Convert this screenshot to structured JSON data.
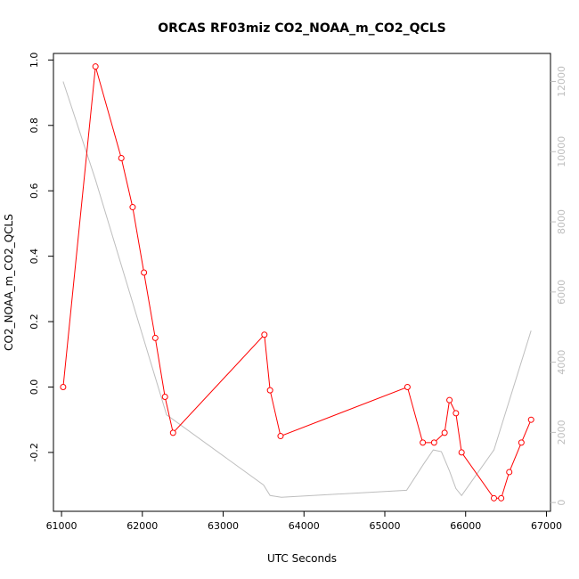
{
  "chart_data": {
    "type": "line",
    "title": "ORCAS RF03miz CO2_NOAA_m_CO2_QCLS",
    "xlabel": "UTC Seconds",
    "ylabel": "CO2_NOAA_m_CO2_QCLS",
    "xlim": [
      60900,
      67050
    ],
    "ylim": [
      -0.38,
      1.02
    ],
    "y2lim": [
      -250,
      12800
    ],
    "x_ticks": [
      61000,
      62000,
      63000,
      64000,
      65000,
      66000,
      67000
    ],
    "x_tick_labels": [
      "61000",
      "62000",
      "63000",
      "64000",
      "65000",
      "66000",
      "67000"
    ],
    "y_ticks": [
      -0.2,
      0.0,
      0.2,
      0.4,
      0.6,
      0.8,
      1.0
    ],
    "y_tick_labels": [
      "-0.2",
      "0.0",
      "0.2",
      "0.4",
      "0.6",
      "0.8",
      "1.0"
    ],
    "y2_ticks": [
      0,
      2000,
      4000,
      6000,
      8000,
      10000,
      12000
    ],
    "y2_tick_labels": [
      "0",
      "2000",
      "4000",
      "6000",
      "8000",
      "10000",
      "12000"
    ],
    "grid": false,
    "legend": "none",
    "series": [
      {
        "axis": "left",
        "color": "#ff0000",
        "marker": "open-circle",
        "x": [
          61020,
          61420,
          61740,
          61880,
          62020,
          62160,
          62280,
          62380,
          63510,
          63580,
          63710,
          65280,
          65470,
          65610,
          65740,
          65800,
          65880,
          65950,
          66350,
          66440,
          66540,
          66690,
          66810
        ],
        "y": [
          0.0,
          0.98,
          0.7,
          0.55,
          0.35,
          0.15,
          -0.03,
          -0.14,
          0.16,
          -0.01,
          -0.15,
          0.0,
          -0.17,
          -0.17,
          -0.14,
          -0.04,
          -0.08,
          -0.2,
          -0.34,
          -0.34,
          -0.26,
          -0.17,
          -0.1
        ]
      },
      {
        "axis": "right",
        "color": "#bebebe",
        "marker": "none",
        "x": [
          61020,
          61420,
          62300,
          63500,
          63580,
          63720,
          65270,
          65480,
          65600,
          65700,
          65800,
          65880,
          65950,
          66350,
          66810
        ],
        "y": [
          12000,
          9200,
          2500,
          500,
          200,
          150,
          350,
          1100,
          1500,
          1450,
          900,
          400,
          200,
          1500,
          4900
        ]
      }
    ]
  }
}
